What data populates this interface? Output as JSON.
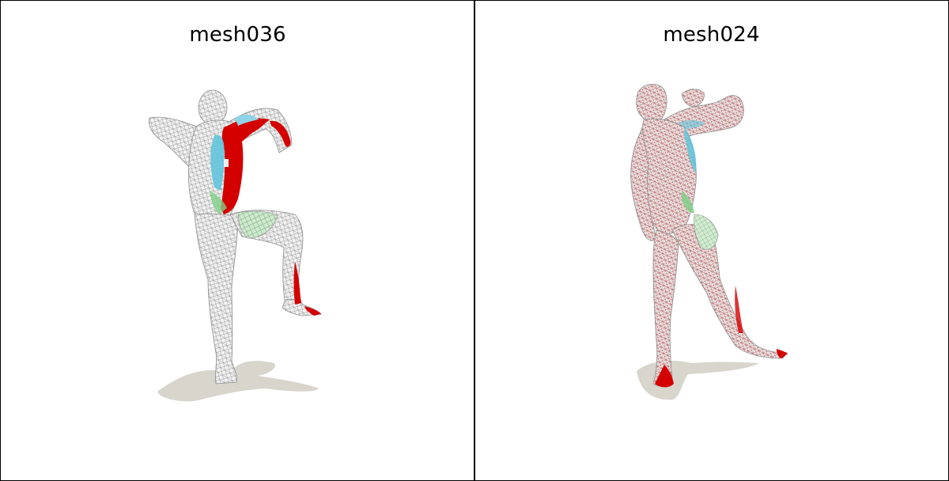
{
  "panels": [
    {
      "title": "mesh036"
    },
    {
      "title": "mesh024"
    }
  ],
  "colors": {
    "mesh_fill": "#f1f1f1",
    "wireframe": "#9a9a9a",
    "highlight_red": "#d40000",
    "highlight_cyan": "#62c4dc",
    "highlight_green": "#7fcf86",
    "shadow": "#d6d3cb"
  }
}
